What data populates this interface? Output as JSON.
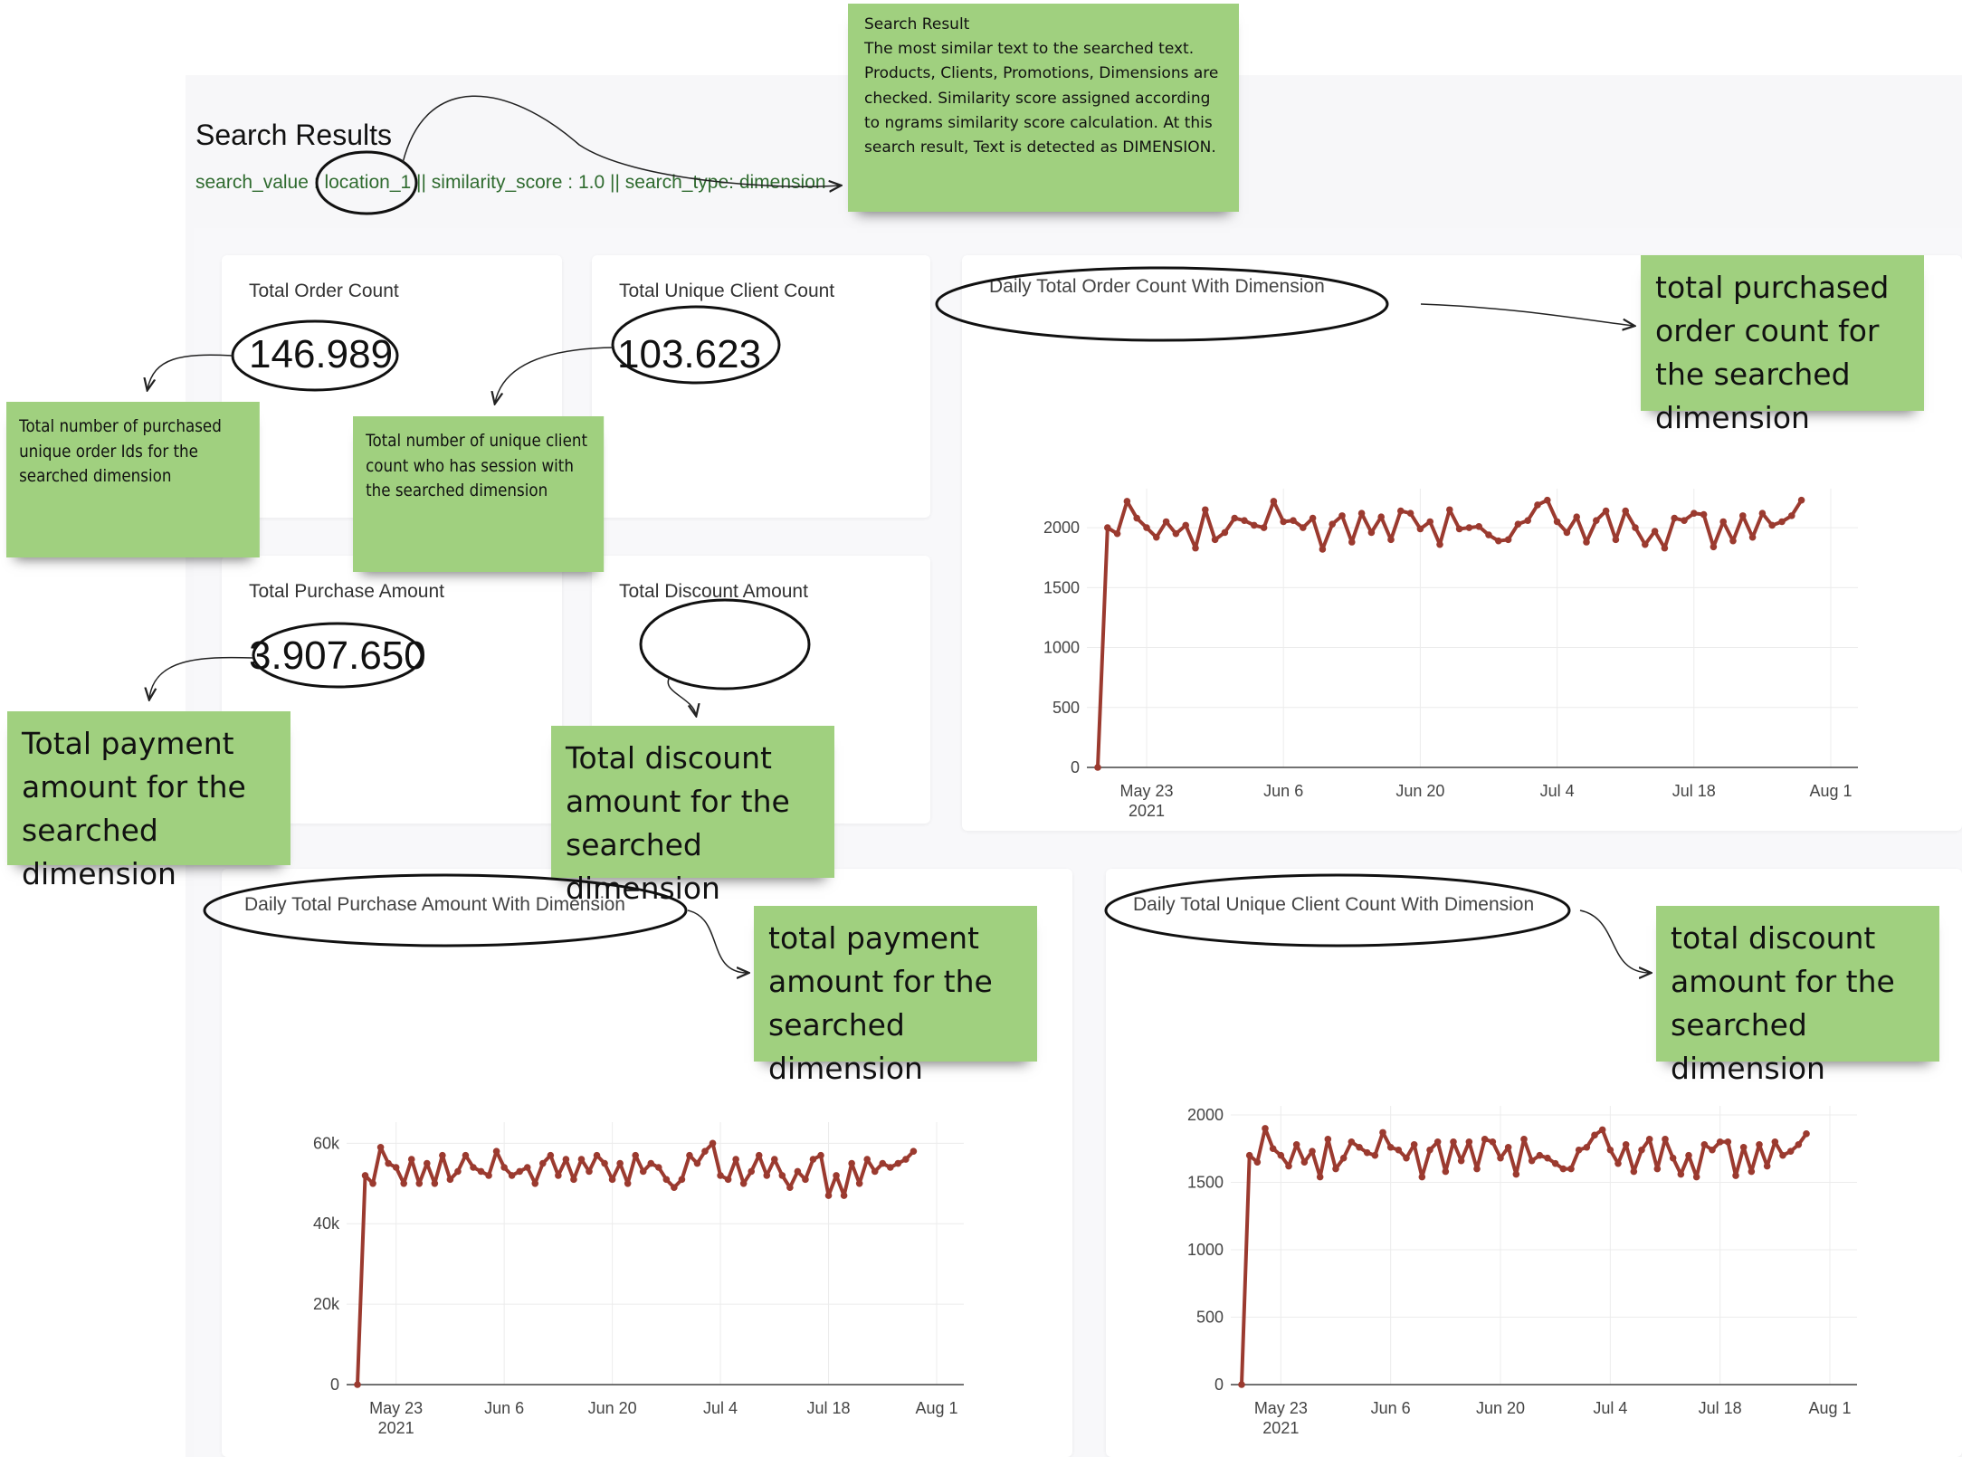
{
  "header": {
    "title": "Search Results",
    "search_value_label": "search_value :",
    "search_value": "location_1",
    "similarity_label": "|| similarity_score : 1.0",
    "search_type_label": "|| search_type: dimension"
  },
  "kpis": [
    {
      "label": "Total Order Count",
      "value": "146.989"
    },
    {
      "label": "Total Unique Client Count",
      "value": "103.623"
    },
    {
      "label": "Total Purchase Amount",
      "value": "3.907.650"
    },
    {
      "label": "Total Discount Amount",
      "value": ""
    }
  ],
  "notes": {
    "search_result": "Search Result\nThe most similar text to the searched text. Products, Clients, Promotions, Dimensions are checked. Similarity score assigned according to ngrams similarity score calculation. At this search result, Text is detected as DIMENSION.",
    "order_count": "Total number of purchased unique order Ids for the searched dimension",
    "client_count": "Total number of unique client count who has session with the searched dimension",
    "payment_amount": "Total payment amount for the searched dimension",
    "discount_amount": "Total discount amount for the searched dimension",
    "order_chart": "total purchased order count for the searched dimension",
    "payment_chart": "total payment amount for the searched dimension",
    "discount_chart": "total discount amount for the searched dimension"
  },
  "colors": {
    "line": "#9b3a2f",
    "note": "#a0d07f",
    "search_info": "#2f6b2f"
  },
  "chart_data": [
    {
      "type": "line",
      "title": "Daily Total Order Count With Dimension",
      "x_ticks": [
        "May 23\n2021",
        "Jun 6",
        "Jun 20",
        "Jul 4",
        "Jul 18",
        "Aug 1"
      ],
      "x_start": "2021-05-18",
      "ylim": [
        0,
        2250
      ],
      "y_ticks": [
        0,
        500,
        1000,
        1500,
        2000
      ],
      "y_tick_labels": [
        "0",
        "500",
        "1000",
        "1500",
        "2000"
      ],
      "values": [
        0,
        2000,
        1950,
        2220,
        2080,
        2000,
        1920,
        2050,
        1950,
        2020,
        1830,
        2150,
        1900,
        1960,
        2080,
        2060,
        2020,
        2000,
        2220,
        2050,
        2060,
        2000,
        2080,
        1820,
        2030,
        2100,
        1880,
        2120,
        1960,
        2090,
        1900,
        2140,
        2120,
        1990,
        2050,
        1860,
        2150,
        1990,
        2000,
        2010,
        1940,
        1890,
        1900,
        2030,
        2060,
        2190,
        2230,
        2050,
        1960,
        2090,
        1880,
        2060,
        2140,
        1900,
        2140,
        2000,
        1860,
        1970,
        1830,
        2080,
        2060,
        2120,
        2110,
        1840,
        2050,
        1890,
        2100,
        1920,
        2120,
        2020,
        2050,
        2100,
        2230
      ]
    },
    {
      "type": "line",
      "title": "Daily Total Purchase Amount With Dimension",
      "x_ticks": [
        "May 23\n2021",
        "Jun 6",
        "Jun 20",
        "Jul 4",
        "Jul 18",
        "Aug 1"
      ],
      "x_start": "2021-05-18",
      "ylim": [
        0,
        63000
      ],
      "y_ticks": [
        0,
        20000,
        40000,
        60000
      ],
      "y_tick_labels": [
        "0",
        "20k",
        "40k",
        "60k"
      ],
      "values": [
        0,
        52000,
        50000,
        59000,
        55000,
        54000,
        50000,
        56000,
        50000,
        55000,
        50000,
        57000,
        51000,
        53000,
        57000,
        54000,
        53000,
        52000,
        58000,
        54000,
        52000,
        53000,
        54000,
        50000,
        55000,
        57000,
        52000,
        56000,
        51000,
        56000,
        53000,
        57000,
        55000,
        51000,
        55000,
        50000,
        57000,
        53000,
        55000,
        54000,
        51000,
        49000,
        51000,
        57000,
        55000,
        58000,
        60000,
        52000,
        51000,
        56000,
        50000,
        53000,
        57000,
        52000,
        56000,
        52000,
        49000,
        53000,
        51000,
        56000,
        57000,
        47000,
        52000,
        47000,
        55000,
        50000,
        56000,
        53000,
        55000,
        54000,
        55000,
        56000,
        58000
      ]
    },
    {
      "type": "line",
      "title": "Daily Total Unique Client Count With Dimension",
      "x_ticks": [
        "May 23\n2021",
        "Jun 6",
        "Jun 20",
        "Jul 4",
        "Jul 18",
        "Aug 1"
      ],
      "x_start": "2021-05-18",
      "ylim": [
        0,
        2000
      ],
      "y_ticks": [
        0,
        500,
        1000,
        1500,
        2000
      ],
      "y_tick_labels": [
        "0",
        "500",
        "1000",
        "1500",
        "2000"
      ],
      "values": [
        0,
        1700,
        1650,
        1900,
        1750,
        1700,
        1620,
        1780,
        1650,
        1730,
        1540,
        1820,
        1600,
        1680,
        1800,
        1760,
        1720,
        1700,
        1870,
        1760,
        1740,
        1680,
        1780,
        1540,
        1740,
        1800,
        1580,
        1800,
        1660,
        1800,
        1600,
        1820,
        1800,
        1680,
        1760,
        1560,
        1820,
        1660,
        1700,
        1680,
        1640,
        1600,
        1600,
        1740,
        1760,
        1850,
        1890,
        1740,
        1640,
        1780,
        1580,
        1740,
        1820,
        1600,
        1820,
        1680,
        1560,
        1700,
        1540,
        1780,
        1740,
        1800,
        1800,
        1550,
        1760,
        1580,
        1780,
        1620,
        1800,
        1700,
        1730,
        1780,
        1860
      ]
    }
  ]
}
